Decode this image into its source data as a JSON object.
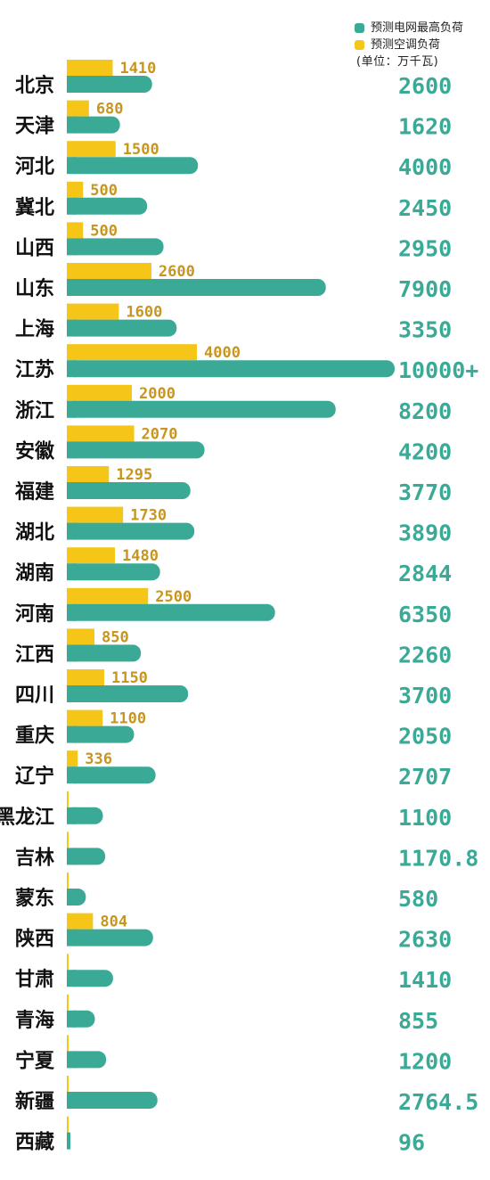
{
  "colors": {
    "peak": "#3aaa96",
    "ac": "#f5c518",
    "ac_label": "#c8961e",
    "peak_label": "#3aaa96",
    "province": "#111111"
  },
  "legend": {
    "peak": "预测电网最高负荷",
    "ac": "预测空调负荷",
    "unit": "(单位：万千瓦)"
  },
  "chart_data": {
    "type": "bar",
    "orientation": "horizontal",
    "categories": [
      "北京",
      "天津",
      "河北",
      "冀北",
      "山西",
      "山东",
      "上海",
      "江苏",
      "浙江",
      "安徽",
      "福建",
      "湖北",
      "湖南",
      "河南",
      "江西",
      "四川",
      "重庆",
      "辽宁",
      "黑龙江",
      "吉林",
      "蒙东",
      "陕西",
      "甘肃",
      "青海",
      "宁夏",
      "新疆",
      "西藏"
    ],
    "series": [
      {
        "name": "预测空调负荷",
        "values": [
          1410,
          680,
          1500,
          500,
          500,
          2600,
          1600,
          4000,
          2000,
          2070,
          1295,
          1730,
          1480,
          2500,
          850,
          1150,
          1100,
          336,
          null,
          null,
          null,
          804,
          null,
          null,
          null,
          null,
          null
        ],
        "labels": [
          "1410",
          "680",
          "1500",
          "500",
          "500",
          "2600",
          "1600",
          "4000",
          "2000",
          "2070",
          "1295",
          "1730",
          "1480",
          "2500",
          "850",
          "1150",
          "1100",
          "336",
          "",
          "",
          "",
          "804",
          "",
          "",
          "",
          "",
          ""
        ]
      },
      {
        "name": "预测电网最高负荷",
        "values": [
          2600,
          1620,
          4000,
          2450,
          2950,
          7900,
          3350,
          10000,
          8200,
          4200,
          3770,
          3890,
          2844,
          6350,
          2260,
          3700,
          2050,
          2707,
          1100,
          1170.8,
          580,
          2630,
          1410,
          855,
          1200,
          2764.5,
          96
        ],
        "labels": [
          "2600",
          "1620",
          "4000",
          "2450",
          "2950",
          "7900",
          "3350",
          "10000+",
          "8200",
          "4200",
          "3770",
          "3890",
          "2844",
          "6350",
          "2260",
          "3700",
          "2050",
          "2707",
          "1100",
          "1170.8",
          "580",
          "2630",
          "1410",
          "855",
          "1200",
          "2764.5",
          "96"
        ]
      }
    ],
    "legend_position": "top-right",
    "grid": false,
    "xlim": [
      0,
      10000
    ]
  }
}
